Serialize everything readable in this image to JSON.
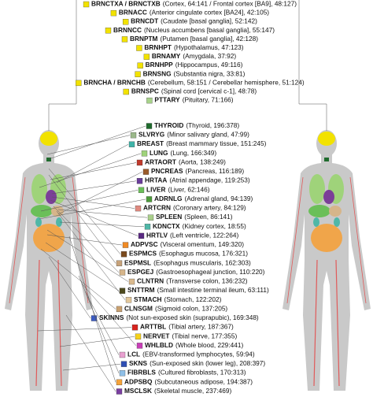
{
  "brain": [
    {
      "code": "BRNCTXA / BRNCTXB",
      "description": "(Cortex, 64:141 / Frontal cortex [BA9], 48:127)",
      "color": "#f2e200"
    },
    {
      "code": "BRNACC",
      "description": "(Anterior cingulate cortex [BA24], 42:105)",
      "color": "#f2e200"
    },
    {
      "code": "BRNCDT",
      "description": "(Caudate [basal ganglia], 52:142)",
      "color": "#f2e200"
    },
    {
      "code": "BRNNCC",
      "description": "(Nucleus accumbens [basal ganglia], 55:147)",
      "color": "#f2e200"
    },
    {
      "code": "BRNPTM",
      "description": "(Putamen [basal ganglia], 42:128)",
      "color": "#f2e200"
    },
    {
      "code": "BRNHPT",
      "description": "(Hypothalamus, 47:123)",
      "color": "#f2e200"
    },
    {
      "code": "BRNAMY",
      "description": "(Amygdala, 37:92)",
      "color": "#f2e200"
    },
    {
      "code": "BRNHPP",
      "description": "(Hippocampus, 49:116)",
      "color": "#f2e200"
    },
    {
      "code": "BRNSNG",
      "description": "(Substantia nigra, 33:81)",
      "color": "#f2e200"
    },
    {
      "code": "BRNCHA / BRNCHB",
      "description": "(Cerebellum, 58:151 / Cerebellar hemisphere, 51:124)",
      "color": "#f2e200"
    },
    {
      "code": "BRNSPC",
      "description": "(Spinal cord [cervical c-1], 48:78)",
      "color": "#f2e200"
    },
    {
      "code": "PTTARY",
      "description": "(Pituitary, 71:166)",
      "color": "#a8d38a"
    }
  ],
  "tissues": [
    {
      "code": "THYROID",
      "description": "(Thyroid, 196:378)",
      "color": "#1f6b2d"
    },
    {
      "code": "SLVRYG",
      "description": "(Minor salivary gland, 47:99)",
      "color": "#9bb88a"
    },
    {
      "code": "BREAST",
      "description": "(Breast mammary tissue, 151:245)",
      "color": "#3fb3a8"
    },
    {
      "code": "LUNG",
      "description": "(Lung, 166:349)",
      "color": "#9fd37a"
    },
    {
      "code": "ARTAORT",
      "description": "(Aorta, 138:249)",
      "color": "#c0392b"
    },
    {
      "code": "PNCREAS",
      "description": "(Pancreas, 116:189)",
      "color": "#9a5b2a"
    },
    {
      "code": "HRTAA",
      "description": "(Atrial appendage, 119:253)",
      "color": "#6a3d9a"
    },
    {
      "code": "LIVER",
      "description": "(Liver, 62:146)",
      "color": "#6bbf59"
    },
    {
      "code": "ADRNLG",
      "description": "(Adrenal gland, 94:139)",
      "color": "#4c9a3a"
    },
    {
      "code": "ARTCRN",
      "description": "(Coronary artery, 84:129)",
      "color": "#e08a80"
    },
    {
      "code": "SPLEEN",
      "description": "(Spleen, 86:141)",
      "color": "#a9cf8a"
    },
    {
      "code": "KDNCTX",
      "description": "(Kidney cortex, 18:55)",
      "color": "#4fb7a7"
    },
    {
      "code": "HRTLV",
      "description": "(Left ventricle, 122:264)",
      "color": "#5a2a82"
    },
    {
      "code": "ADPVSC",
      "description": "(Visceral omentum, 149:320)",
      "color": "#f08a24"
    },
    {
      "code": "ESPMCS",
      "description": "(Esophagus mucosa, 176:321)",
      "color": "#7a4a1e"
    },
    {
      "code": "ESPMSL",
      "description": "(Esophagus muscularis, 162:303)",
      "color": "#c7a27a"
    },
    {
      "code": "ESPGEJ",
      "description": "(Gastroesophageal junction, 110:220)",
      "color": "#d6b58a"
    },
    {
      "code": "CLNTRN",
      "description": "(Transverse colon, 136:232)",
      "color": "#d9b98e"
    },
    {
      "code": "SNTTRM",
      "description": "(Small intestine terminal ileum, 63:111)",
      "color": "#4d4a1e"
    },
    {
      "code": "STMACH",
      "description": "(Stomach, 122:202)",
      "color": "#e3c79a"
    },
    {
      "code": "CLNSGM",
      "description": "(Sigmoid colon, 137:205)",
      "color": "#c9a070"
    },
    {
      "code": "SKINNS",
      "description": "(Not sun-exposed skin (suprapubic), 169:348)",
      "color": "#3b5bc4"
    },
    {
      "code": "ARTTBL",
      "description": "(Tibial artery, 187:367)",
      "color": "#d8241e"
    },
    {
      "code": "NERVET",
      "description": "(Tibial nerve, 177:355)",
      "color": "#f5d21c"
    },
    {
      "code": "WHLBLD",
      "description": "(Whole blood, 229:441)",
      "color": "#c83fb7"
    },
    {
      "code": "LCL",
      "description": "(EBV-transformed lymphocytes, 59:94)",
      "color": "#e8a0d0"
    },
    {
      "code": "SKNS",
      "description": "(Sun-exposed skin (lower leg), 208:397)",
      "color": "#2f4fb4"
    },
    {
      "code": "FIBRBLS",
      "description": "(Cultured fibroblasts, 170:313)",
      "color": "#8fc0e8"
    },
    {
      "code": "ADPSBQ",
      "description": "(Subcutaneous adipose, 194:387)",
      "color": "#f5a33a"
    },
    {
      "code": "MSCLSK",
      "description": "(Skeletal muscle, 237:469)",
      "color": "#7a3fa0"
    }
  ]
}
